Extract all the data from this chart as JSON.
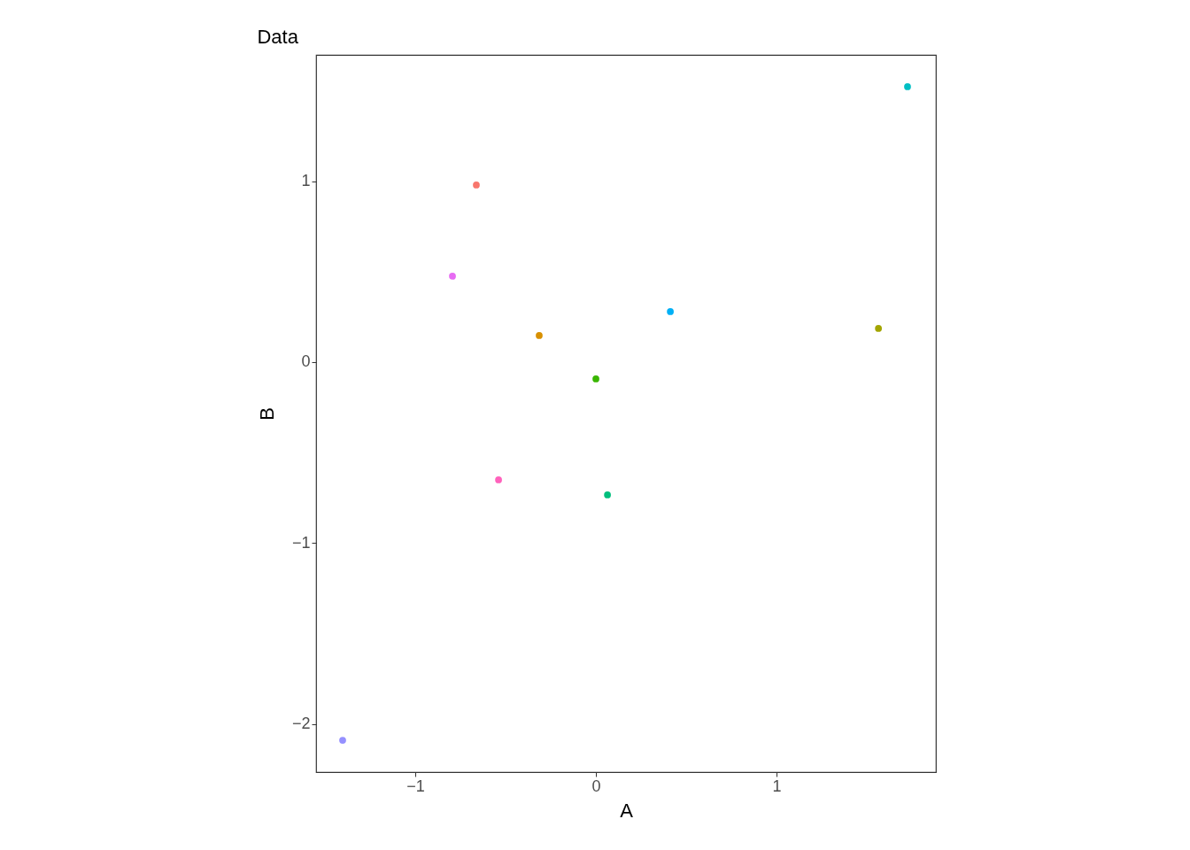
{
  "chart_data": {
    "type": "scatter",
    "title": "Data",
    "xlabel": "A",
    "ylabel": "B",
    "x": [
      -0.662,
      -0.794,
      -0.314,
      0.412,
      1.564,
      0.0,
      -0.539,
      0.064,
      -1.402,
      1.725
    ],
    "values": [
      0.979,
      0.475,
      0.147,
      0.279,
      0.186,
      -0.093,
      -0.651,
      -0.734,
      -2.09,
      1.522
    ],
    "colors": [
      "#f8766d",
      "#e76bf3",
      "#d89000",
      "#00b0f6",
      "#a3a500",
      "#39b600",
      "#ff62bc",
      "#00bf7d",
      "#9590ff",
      "#00bfc4"
    ],
    "xlim": [
      -1.549,
      1.882
    ],
    "ylim": [
      -2.266,
      1.698
    ],
    "xticks": [
      -1,
      0,
      1
    ],
    "yticks": [
      -2,
      -1,
      0,
      1
    ],
    "grid": false,
    "legend": false,
    "marker": "circle"
  }
}
